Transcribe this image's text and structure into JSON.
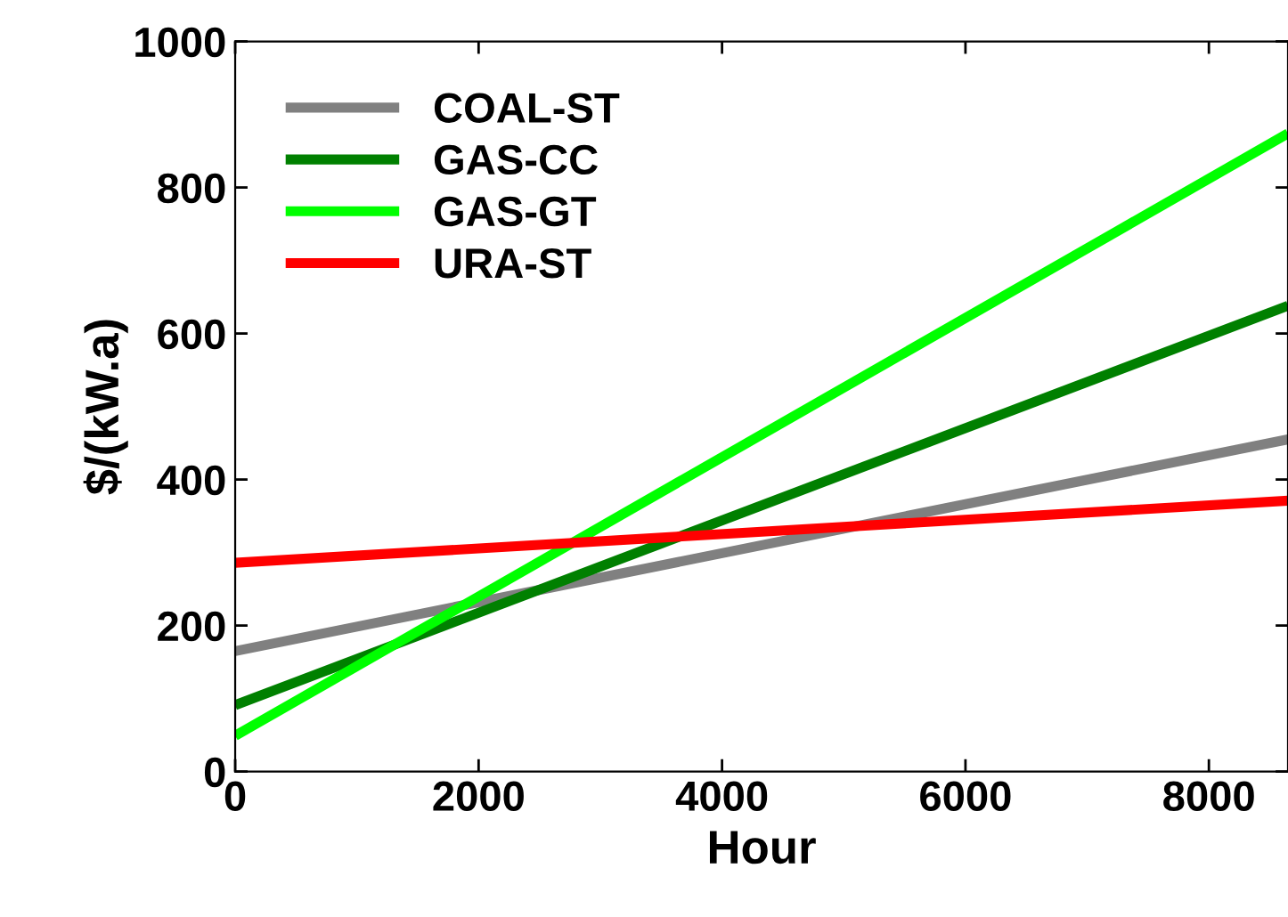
{
  "chart_data": {
    "type": "line",
    "xlabel": "Hour",
    "ylabel": "$/(kW.a)",
    "x": [
      0,
      8650
    ],
    "series": [
      {
        "name": "COAL-ST",
        "color": "#808080",
        "values": [
          165,
          455
        ]
      },
      {
        "name": "GAS-CC",
        "color": "#008000",
        "values": [
          91,
          638
        ]
      },
      {
        "name": "GAS-GT",
        "color": "#00ff00",
        "values": [
          49,
          874
        ]
      },
      {
        "name": "URA-ST",
        "color": "#ff0000",
        "values": [
          286,
          371
        ]
      }
    ],
    "xlim": [
      0,
      8650
    ],
    "ylim": [
      0,
      1000
    ],
    "xticks": [
      0,
      2000,
      4000,
      6000,
      8000
    ],
    "yticks": [
      0,
      200,
      400,
      600,
      800,
      1000
    ],
    "grid": false,
    "legend": "top left",
    "marker": "none",
    "line_style": "solid"
  }
}
